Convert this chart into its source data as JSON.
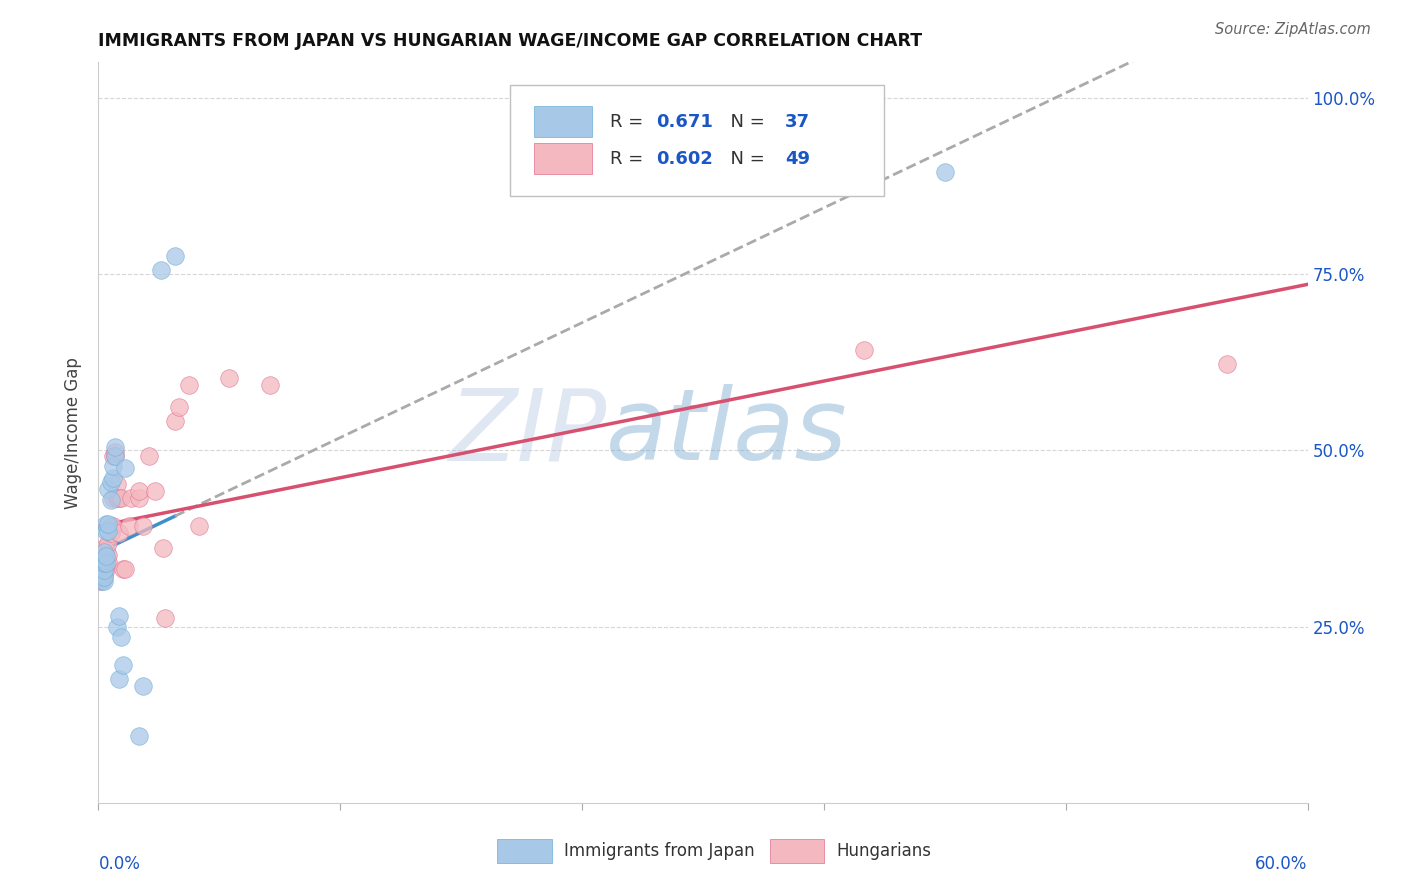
{
  "title": "IMMIGRANTS FROM JAPAN VS HUNGARIAN WAGE/INCOME GAP CORRELATION CHART",
  "source": "Source: ZipAtlas.com",
  "ylabel": "Wage/Income Gap",
  "watermark_zip": "ZIP",
  "watermark_atlas": "atlas",
  "series1_color": "#a8c8e8",
  "series2_color": "#f4b8c0",
  "series1_edge": "#6baed6",
  "series2_edge": "#e07090",
  "trendline1_color": "#4090c8",
  "trendline2_color": "#d85070",
  "trendline1_dash_color": "#b0c8e0",
  "background_color": "#ffffff",
  "series1_name": "Immigrants from Japan",
  "series2_name": "Hungarians",
  "r1": "0.671",
  "n1": "37",
  "r2": "0.602",
  "n2": "49",
  "legend_text_color": "#1a56c4",
  "legend_label_color": "#333333",
  "japan_x": [
    0.001,
    0.001,
    0.002,
    0.002,
    0.002,
    0.002,
    0.002,
    0.003,
    0.003,
    0.003,
    0.003,
    0.003,
    0.003,
    0.004,
    0.004,
    0.004,
    0.004,
    0.005,
    0.005,
    0.005,
    0.006,
    0.006,
    0.007,
    0.007,
    0.008,
    0.008,
    0.009,
    0.01,
    0.01,
    0.011,
    0.012,
    0.013,
    0.02,
    0.022,
    0.031,
    0.038,
    0.42
  ],
  "japan_y": [
    0.32,
    0.325,
    0.315,
    0.32,
    0.325,
    0.335,
    0.345,
    0.315,
    0.32,
    0.33,
    0.34,
    0.345,
    0.355,
    0.34,
    0.35,
    0.385,
    0.395,
    0.385,
    0.395,
    0.445,
    0.43,
    0.455,
    0.46,
    0.478,
    0.492,
    0.505,
    0.25,
    0.175,
    0.265,
    0.235,
    0.195,
    0.475,
    0.095,
    0.165,
    0.755,
    0.775,
    0.895
  ],
  "hungarian_x": [
    0.001,
    0.001,
    0.002,
    0.002,
    0.002,
    0.002,
    0.003,
    0.003,
    0.003,
    0.003,
    0.003,
    0.003,
    0.004,
    0.004,
    0.004,
    0.005,
    0.005,
    0.005,
    0.006,
    0.006,
    0.007,
    0.007,
    0.007,
    0.008,
    0.008,
    0.009,
    0.009,
    0.01,
    0.01,
    0.011,
    0.012,
    0.013,
    0.015,
    0.016,
    0.02,
    0.02,
    0.022,
    0.025,
    0.028,
    0.032,
    0.033,
    0.038,
    0.04,
    0.045,
    0.05,
    0.065,
    0.085,
    0.38,
    0.56
  ],
  "hungarian_y": [
    0.315,
    0.322,
    0.318,
    0.328,
    0.333,
    0.352,
    0.322,
    0.328,
    0.332,
    0.342,
    0.352,
    0.362,
    0.332,
    0.348,
    0.358,
    0.342,
    0.352,
    0.368,
    0.382,
    0.392,
    0.392,
    0.432,
    0.492,
    0.492,
    0.498,
    0.432,
    0.452,
    0.382,
    0.432,
    0.432,
    0.332,
    0.332,
    0.392,
    0.432,
    0.432,
    0.442,
    0.392,
    0.492,
    0.442,
    0.362,
    0.262,
    0.542,
    0.562,
    0.592,
    0.392,
    0.602,
    0.592,
    0.642,
    0.622
  ],
  "xlim": [
    0.0,
    0.6
  ],
  "ylim": [
    0.0,
    1.05
  ],
  "yticks": [
    0.25,
    0.5,
    0.75,
    1.0
  ],
  "ytick_labels": [
    "25.0%",
    "50.0%",
    "75.0%",
    "100.0%"
  ]
}
